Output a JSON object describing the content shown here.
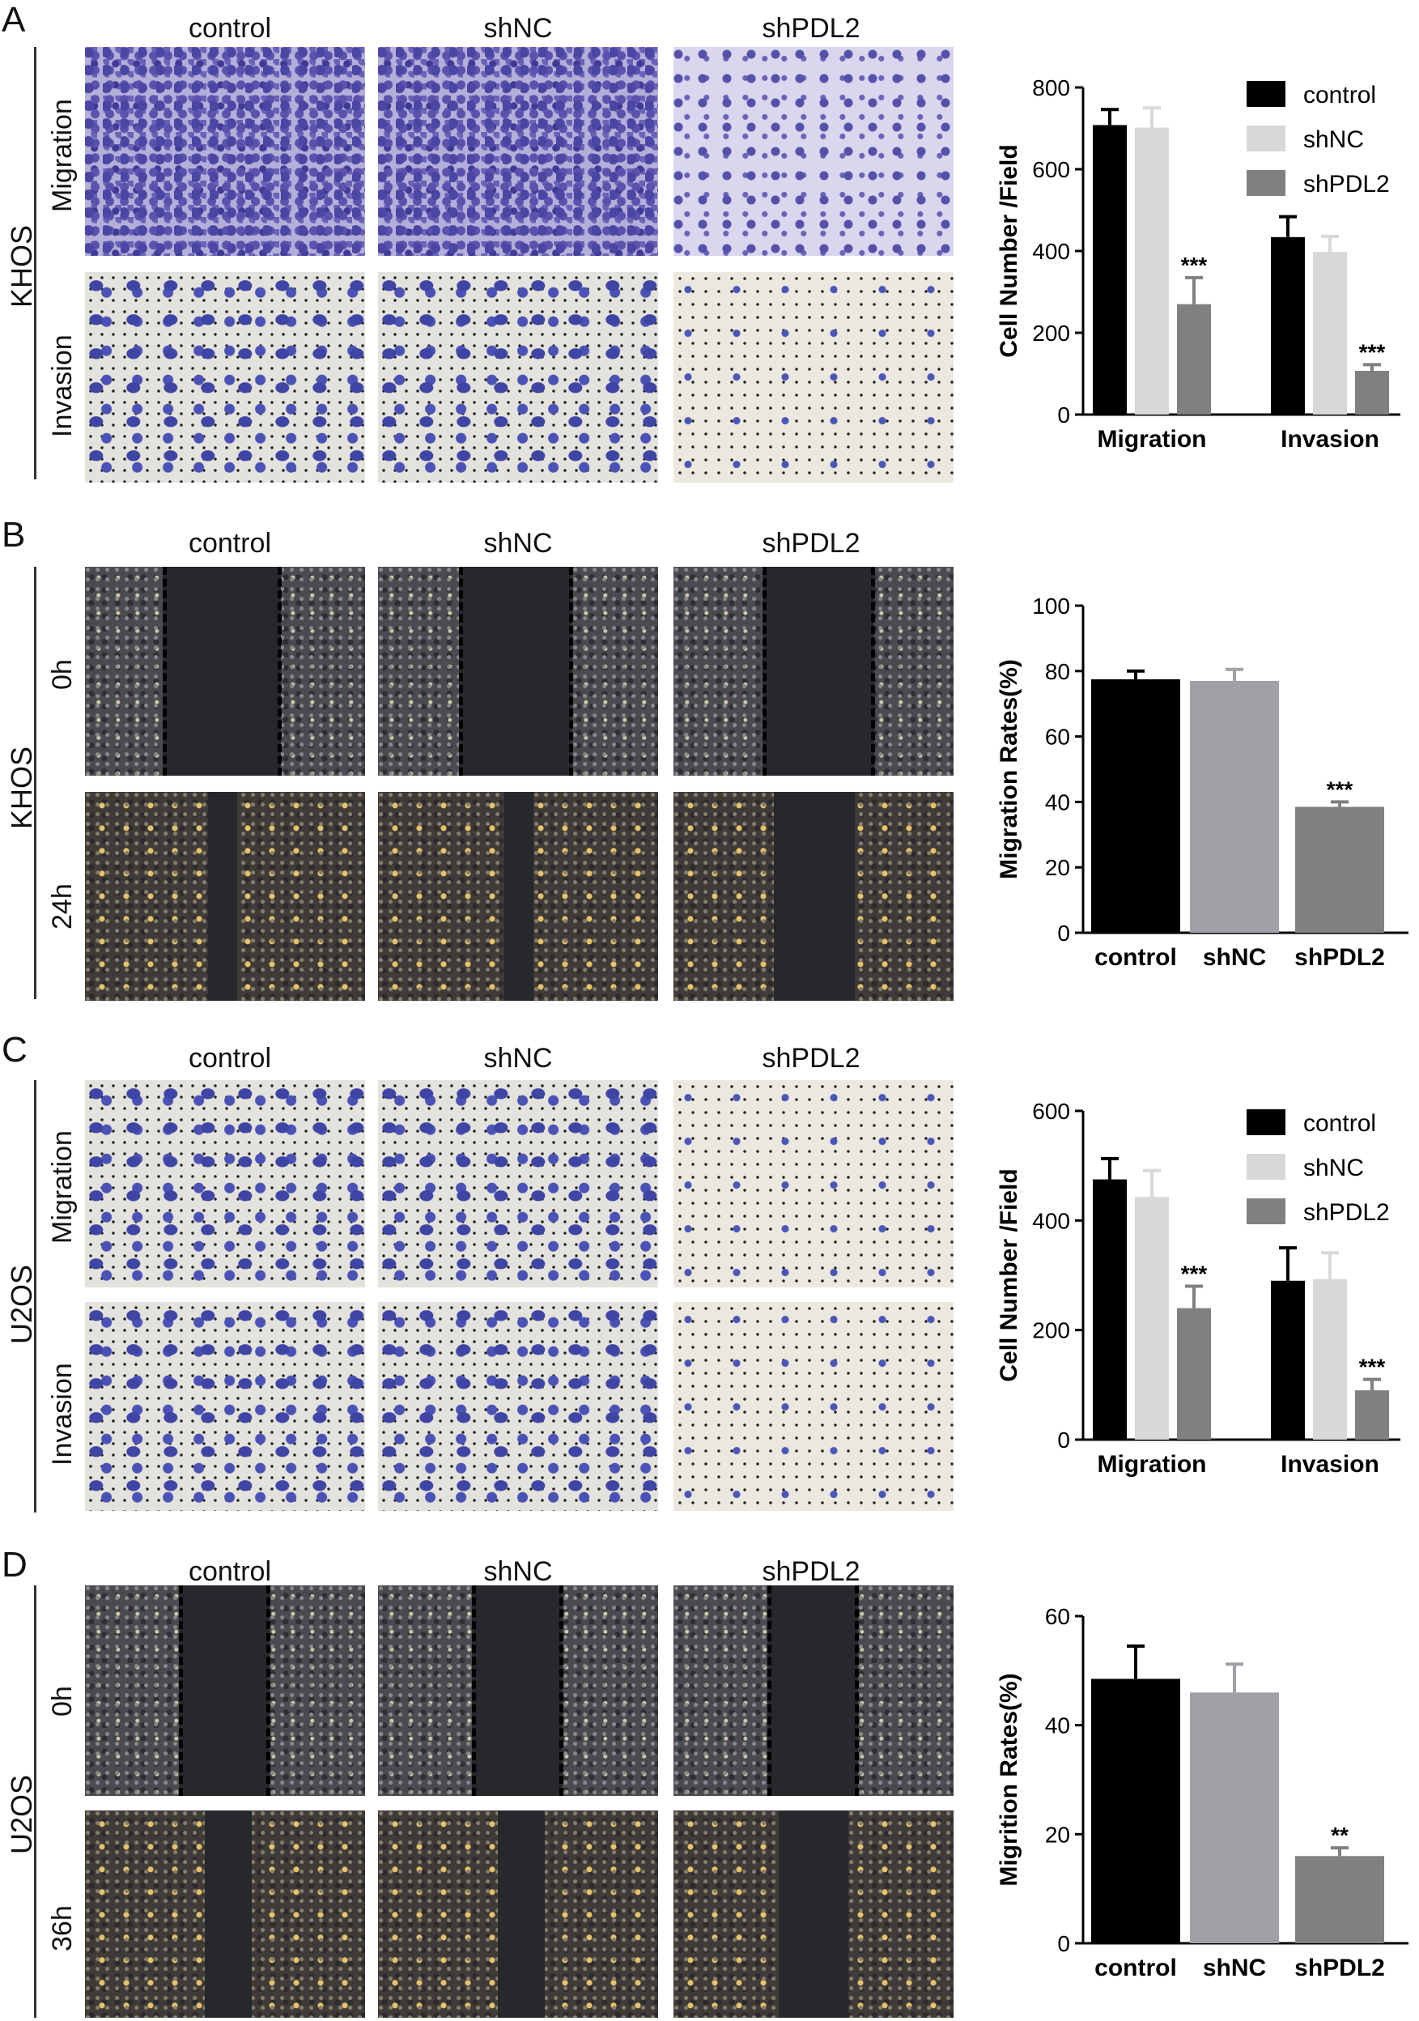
{
  "panels": [
    {
      "letter": "A",
      "cell_line": "KHOS",
      "columns": [
        "control",
        "shNC",
        "shPDL2"
      ],
      "rows": [
        "Migration",
        "Invasion"
      ]
    },
    {
      "letter": "B",
      "cell_line": "KHOS",
      "columns": [
        "control",
        "shNC",
        "shPDL2"
      ],
      "rows": [
        "0h",
        "24h"
      ]
    },
    {
      "letter": "C",
      "cell_line": "U2OS",
      "columns": [
        "control",
        "shNC",
        "shPDL2"
      ],
      "rows": [
        "Migration",
        "Invasion"
      ]
    },
    {
      "letter": "D",
      "cell_line": "U2OS",
      "columns": [
        "control",
        "shNC",
        "shPDL2"
      ],
      "rows": [
        "0h",
        "36h"
      ]
    }
  ],
  "colors": {
    "control": "#000000",
    "shNC_grouped": "#d8d8d8",
    "shPDL2_grouped": "#808080",
    "shNC_single": "#a0a0a6",
    "shPDL2_single": "#808080"
  },
  "chart_data": [
    {
      "panel": "A",
      "type": "bar",
      "categories": [
        "Migration",
        "Invasion"
      ],
      "series": [
        {
          "name": "control",
          "values": [
            708,
            434
          ],
          "errors": [
            38,
            50
          ]
        },
        {
          "name": "shNC",
          "values": [
            702,
            398
          ],
          "errors": [
            48,
            38
          ]
        },
        {
          "name": "shPDL2",
          "values": [
            270,
            107
          ],
          "errors": [
            65,
            15
          ]
        }
      ],
      "annotations": [
        {
          "category": "Migration",
          "series": "shPDL2",
          "text": "***"
        },
        {
          "category": "Invasion",
          "series": "shPDL2",
          "text": "***"
        }
      ],
      "ylabel": "Cell Number /Field",
      "ylim": [
        0,
        800
      ],
      "yticks": [
        0,
        200,
        400,
        600,
        800
      ],
      "legend": "top-right"
    },
    {
      "panel": "B",
      "type": "bar",
      "categories": [
        "control",
        "shNC",
        "shPDL2"
      ],
      "values": [
        77.5,
        77,
        38.5
      ],
      "errors": [
        2.5,
        3.5,
        1.5
      ],
      "annotations": [
        {
          "category": "shPDL2",
          "text": "***"
        }
      ],
      "ylabel": "Migration Rates(%)",
      "ylim": [
        0,
        100
      ],
      "yticks": [
        0,
        20,
        40,
        60,
        80,
        100
      ]
    },
    {
      "panel": "C",
      "type": "bar",
      "categories": [
        "Migration",
        "Invasion"
      ],
      "series": [
        {
          "name": "control",
          "values": [
            475,
            290
          ],
          "errors": [
            38,
            60
          ]
        },
        {
          "name": "shNC",
          "values": [
            443,
            293
          ],
          "errors": [
            48,
            48
          ]
        },
        {
          "name": "shPDL2",
          "values": [
            240,
            90
          ],
          "errors": [
            40,
            20
          ]
        }
      ],
      "annotations": [
        {
          "category": "Migration",
          "series": "shPDL2",
          "text": "***"
        },
        {
          "category": "Invasion",
          "series": "shPDL2",
          "text": "***"
        }
      ],
      "ylabel": "Cell Number /Field",
      "ylim": [
        0,
        600
      ],
      "yticks": [
        0,
        200,
        400,
        600
      ],
      "legend": "top-right"
    },
    {
      "panel": "D",
      "type": "bar",
      "categories": [
        "control",
        "shNC",
        "shPDL2"
      ],
      "values": [
        48.5,
        46,
        16
      ],
      "errors": [
        6,
        5.2,
        1.5
      ],
      "annotations": [
        {
          "category": "shPDL2",
          "text": "**"
        }
      ],
      "ylabel": "Migrition Rates(%)",
      "ylim": [
        0,
        60
      ],
      "yticks": [
        0,
        20,
        40,
        60
      ]
    }
  ]
}
